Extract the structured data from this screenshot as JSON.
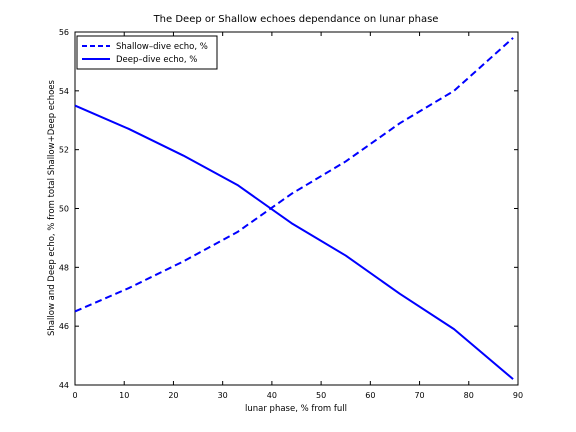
{
  "chart_data": {
    "type": "line",
    "title": "The Deep or Shallow echoes dependance on lunar phase",
    "xlabel": "lunar phase, % from full",
    "ylabel": "Shallow and Deep echo, % from total Shallow+Deep echoes",
    "xlim": [
      0,
      90
    ],
    "ylim": [
      44,
      56
    ],
    "xticks": [
      0,
      10,
      20,
      30,
      40,
      50,
      60,
      70,
      80,
      90
    ],
    "yticks": [
      44,
      46,
      48,
      50,
      52,
      54,
      56
    ],
    "grid": false,
    "legend_position": "top-left",
    "series": [
      {
        "name": "Shallow–dive echo, %",
        "style": "dashed",
        "color": "#0000ff",
        "x": [
          0,
          11,
          22,
          33,
          44,
          55,
          66,
          77,
          89
        ],
        "y": [
          46.5,
          47.3,
          48.2,
          49.2,
          50.5,
          51.6,
          52.9,
          54.0,
          55.8
        ]
      },
      {
        "name": "Deep–dive echo, %",
        "style": "solid",
        "color": "#0000ff",
        "x": [
          0,
          11,
          22,
          33,
          44,
          55,
          66,
          77,
          89
        ],
        "y": [
          53.5,
          52.7,
          51.8,
          50.8,
          49.5,
          48.4,
          47.1,
          45.9,
          44.2
        ]
      }
    ]
  }
}
